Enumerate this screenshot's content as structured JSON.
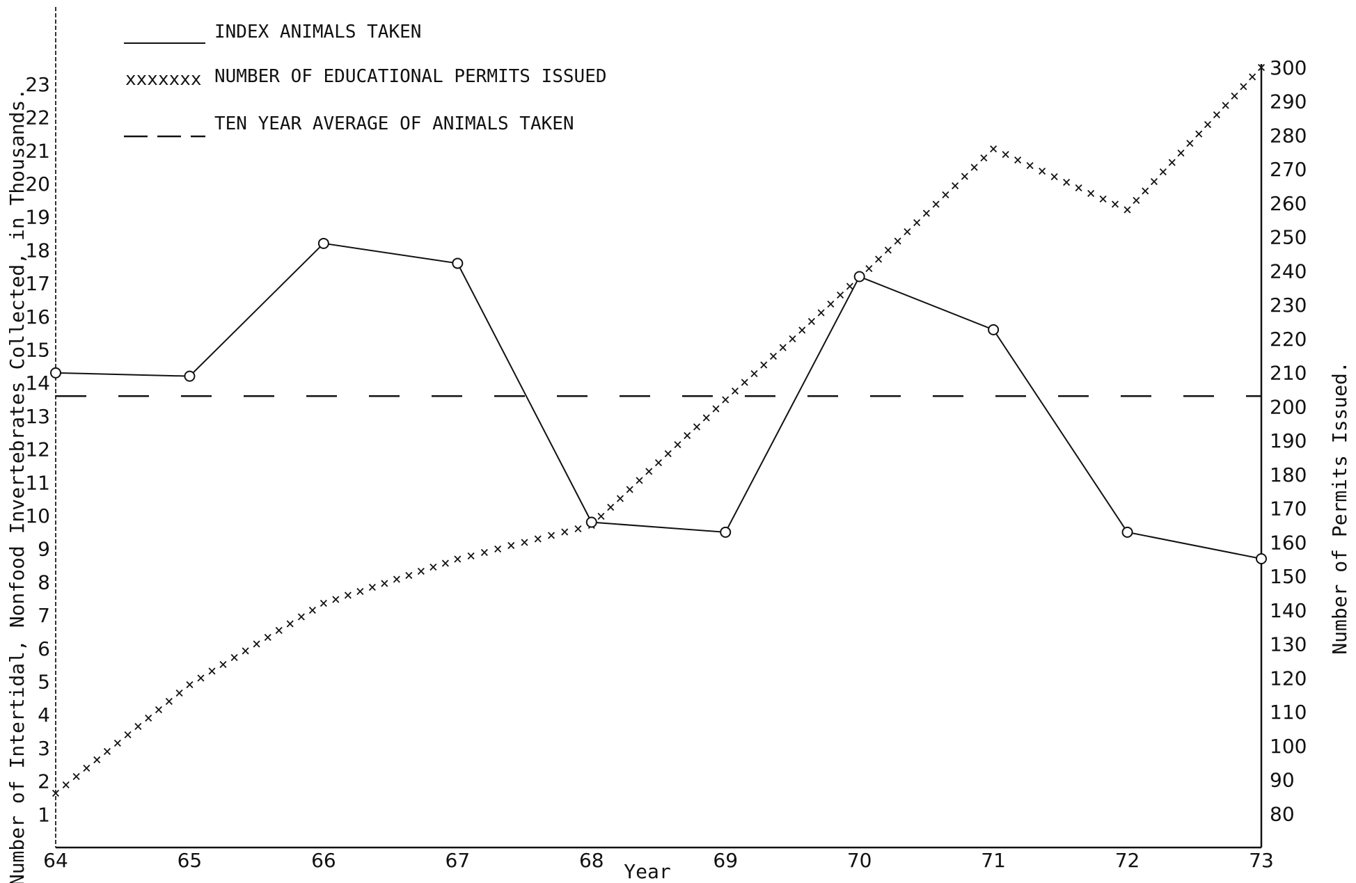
{
  "chart_data": {
    "type": "line",
    "legend": {
      "placement": "top-left",
      "entries": [
        {
          "key": "index",
          "label": "INDEX ANIMALS TAKEN"
        },
        {
          "key": "permits",
          "marker": "xxxxxxx",
          "label": "NUMBER OF EDUCATIONAL PERMITS ISSUED"
        },
        {
          "key": "average",
          "label": "TEN YEAR AVERAGE OF ANIMALS TAKEN"
        }
      ]
    },
    "xlabel": "Year",
    "ylabel_left": "Number of Intertidal, Nonfood Invertebrates Collected, in Thousands.",
    "ylabel_right": "Number of Permits Issued.",
    "x_ticks": [
      "64",
      "65",
      "66",
      "67",
      "68",
      "69",
      "70",
      "71",
      "72",
      "73"
    ],
    "y_left_ticks": [
      "1",
      "2",
      "3",
      "4",
      "5",
      "6",
      "7",
      "8",
      "9",
      "10",
      "11",
      "12",
      "13",
      "14",
      "15",
      "16",
      "17",
      "18",
      "19",
      "20",
      "21",
      "22",
      "23"
    ],
    "y_right_ticks": [
      "80",
      "90",
      "100",
      "110",
      "120",
      "130",
      "140",
      "150",
      "160",
      "170",
      "180",
      "190",
      "200",
      "210",
      "220",
      "230",
      "240",
      "250",
      "260",
      "270",
      "280",
      "290",
      "300"
    ],
    "xlim": [
      1964,
      1973
    ],
    "ylim_left": [
      0,
      23.5
    ],
    "ylim_right": [
      70,
      300
    ],
    "grid": false,
    "series": [
      {
        "name": "INDEX ANIMALS TAKEN",
        "axis": "left",
        "style": "solid",
        "marker": "circle",
        "x": [
          1964,
          1965,
          1966,
          1967,
          1968,
          1969,
          1970,
          1971,
          1972,
          1973
        ],
        "y": [
          14.3,
          14.2,
          18.2,
          17.6,
          9.8,
          9.5,
          17.2,
          15.6,
          9.5,
          8.7
        ]
      },
      {
        "name": "NUMBER OF EDUCATIONAL PERMITS ISSUED",
        "axis": "right",
        "style": "x-markers",
        "x": [
          1964,
          1965,
          1966,
          1967,
          1968,
          1969,
          1970,
          1971,
          1972,
          1973
        ],
        "y": [
          86,
          118,
          142,
          155,
          165,
          202,
          238,
          276,
          258,
          300
        ]
      },
      {
        "name": "TEN YEAR AVERAGE OF ANIMALS TAKEN",
        "axis": "left",
        "style": "dashed",
        "x": [
          1964,
          1973
        ],
        "y": [
          13.6,
          13.6
        ]
      }
    ]
  }
}
